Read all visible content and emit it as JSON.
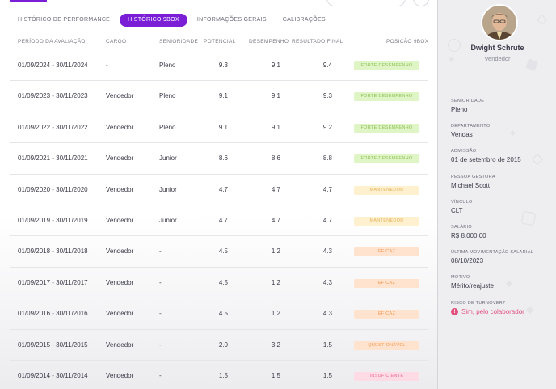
{
  "tabs": [
    {
      "label": "HISTÓRICO DE PERFORMANCE"
    },
    {
      "label": "HISTÓRICO 9BOX"
    },
    {
      "label": "INFORMAÇÕES GERAIS"
    },
    {
      "label": "CALIBRAÇÕES"
    }
  ],
  "active_tab": "HISTÓRICO 9BOX",
  "table": {
    "headers": {
      "period": "PERÍODO DA AVALIAÇÃO",
      "cargo": "CARGO",
      "senioridade": "SENIORIDADE",
      "potencial": "POTENCIAL",
      "desempenho": "DESEMPENHO",
      "resultado": "RESULTADO FINAL",
      "posicao": "POSIÇÃO 9BOX"
    },
    "rows": [
      {
        "period": "01/09/2024 - 30/11/2024",
        "cargo": "-",
        "senioridade": "Pleno",
        "potencial": "9.3",
        "desempenho": "9.1",
        "resultado": "9.4",
        "posicao": "FORTE DESEMPENHO"
      },
      {
        "period": "01/09/2023 - 30/11/2023",
        "cargo": "Vendedor",
        "senioridade": "Pleno",
        "potencial": "9.1",
        "desempenho": "9.1",
        "resultado": "9.3",
        "posicao": "FORTE DESEMPENHO"
      },
      {
        "period": "01/09/2022 - 30/11/2022",
        "cargo": "Vendedor",
        "senioridade": "Pleno",
        "potencial": "9.1",
        "desempenho": "9.1",
        "resultado": "9.2",
        "posicao": "FORTE DESEMPENHO"
      },
      {
        "period": "01/09/2021 - 30/11/2021",
        "cargo": "Vendedor",
        "senioridade": "Junior",
        "potencial": "8.6",
        "desempenho": "8.6",
        "resultado": "8.8",
        "posicao": "FORTE DESEMPENHO"
      },
      {
        "period": "01/09/2020 - 30/11/2020",
        "cargo": "Vendedor",
        "senioridade": "Junior",
        "potencial": "4.7",
        "desempenho": "4.7",
        "resultado": "4.7",
        "posicao": "MANTENEDOR"
      },
      {
        "period": "01/09/2019 - 30/11/2019",
        "cargo": "Vendedor",
        "senioridade": "Junior",
        "potencial": "4.7",
        "desempenho": "4.7",
        "resultado": "4.7",
        "posicao": "MANTENEDOR"
      },
      {
        "period": "01/09/2018 - 30/11/2018",
        "cargo": "Vendedor",
        "senioridade": "-",
        "potencial": "4.5",
        "desempenho": "1.2",
        "resultado": "4.3",
        "posicao": "EFICAZ"
      },
      {
        "period": "01/09/2017 - 30/11/2017",
        "cargo": "Vendedor",
        "senioridade": "-",
        "potencial": "4.5",
        "desempenho": "1.2",
        "resultado": "4.3",
        "posicao": "EFICAZ"
      },
      {
        "period": "01/09/2016 - 30/11/2016",
        "cargo": "Vendedor",
        "senioridade": "-",
        "potencial": "4.5",
        "desempenho": "1.2",
        "resultado": "4.3",
        "posicao": "EFICAZ"
      },
      {
        "period": "01/09/2015 - 30/11/2015",
        "cargo": "Vendedor",
        "senioridade": "-",
        "potencial": "2.0",
        "desempenho": "3.2",
        "resultado": "1.5",
        "posicao": "QUESTIONÁVEL"
      },
      {
        "period": "01/09/2014 - 30/11/2014",
        "cargo": "Vendedor",
        "senioridade": "-",
        "potencial": "1.5",
        "desempenho": "1.5",
        "resultado": "1.5",
        "posicao": "INSUFICIENTE"
      }
    ]
  },
  "badge_colors": {
    "FORTE DESEMPENHO": {
      "bg": "#dff5c6",
      "fg": "#8fc058"
    },
    "MANTENEDOR": {
      "bg": "#fff1cf",
      "fg": "#e6b15a"
    },
    "EFICAZ": {
      "bg": "#ffe3cf",
      "fg": "#f29a52"
    },
    "QUESTIONÁVEL": {
      "bg": "#ffe3cf",
      "fg": "#f29a52"
    },
    "INSUFICIENTE": {
      "bg": "#ffdbe6",
      "fg": "#ec6f95"
    }
  },
  "profile": {
    "name": "Dwight Schrute",
    "role": "Vendedor",
    "fields": [
      {
        "label": "SENIORIDADE",
        "value": "Pleno"
      },
      {
        "label": "DEPARTAMENTO",
        "value": "Vendas"
      },
      {
        "label": "ADMISSÃO",
        "value": "01 de setembro de 2015"
      },
      {
        "label": "PESSOA GESTORA",
        "value": "Michael Scott"
      },
      {
        "label": "VÍNCULO",
        "value": "CLT"
      },
      {
        "label": "SALÁRIO",
        "value": "R$ 8.000,00"
      },
      {
        "label": "ÚLTIMA MOVIMENTAÇÃO SALARIAL",
        "value": "08/10/2023"
      },
      {
        "label": "MOTIVO",
        "value": "Mérito/reajuste"
      },
      {
        "label": "RISCO DE TURNOVER?",
        "value": "Sim, pelo colaborador",
        "alert": true
      }
    ]
  },
  "colors": {
    "accent": "#7a1fd6",
    "alert": "#e2507e"
  }
}
